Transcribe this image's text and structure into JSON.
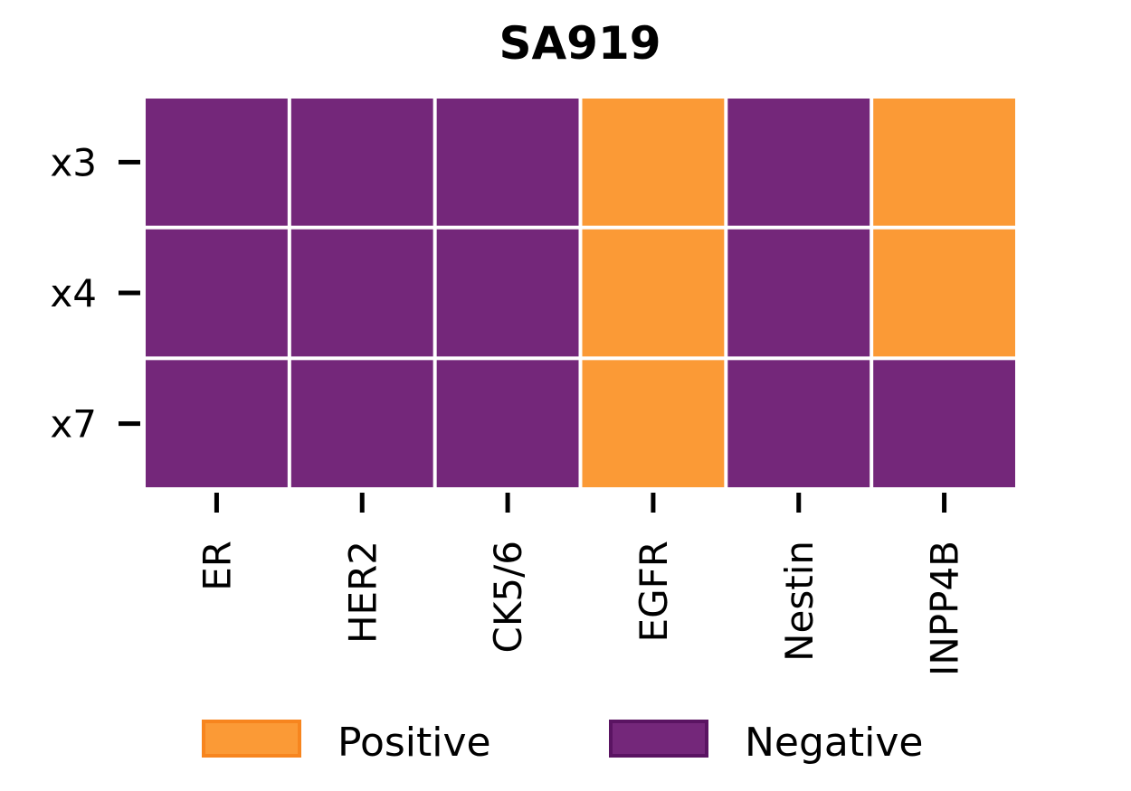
{
  "chart_data": {
    "type": "heatmap",
    "title": "SA919",
    "rows": [
      "x3",
      "x4",
      "x7"
    ],
    "columns": [
      "ER",
      "HER2",
      "CK5/6",
      "EGFR",
      "Nestin",
      "INPP4B"
    ],
    "values": [
      [
        "Negative",
        "Negative",
        "Negative",
        "Positive",
        "Negative",
        "Positive"
      ],
      [
        "Negative",
        "Negative",
        "Negative",
        "Positive",
        "Negative",
        "Positive"
      ],
      [
        "Negative",
        "Negative",
        "Negative",
        "Positive",
        "Negative",
        "Negative"
      ]
    ],
    "legend": {
      "placement": "bottom",
      "entries": [
        {
          "label": "Positive",
          "color": "#fb9a36"
        },
        {
          "label": "Negative",
          "color": "#74277a"
        }
      ]
    },
    "colors": {
      "positive": "#fb9a36",
      "negative": "#74277a",
      "positive_edge": "#f7851e",
      "negative_edge": "#5a1462",
      "grid_line": "#ffffff"
    }
  }
}
